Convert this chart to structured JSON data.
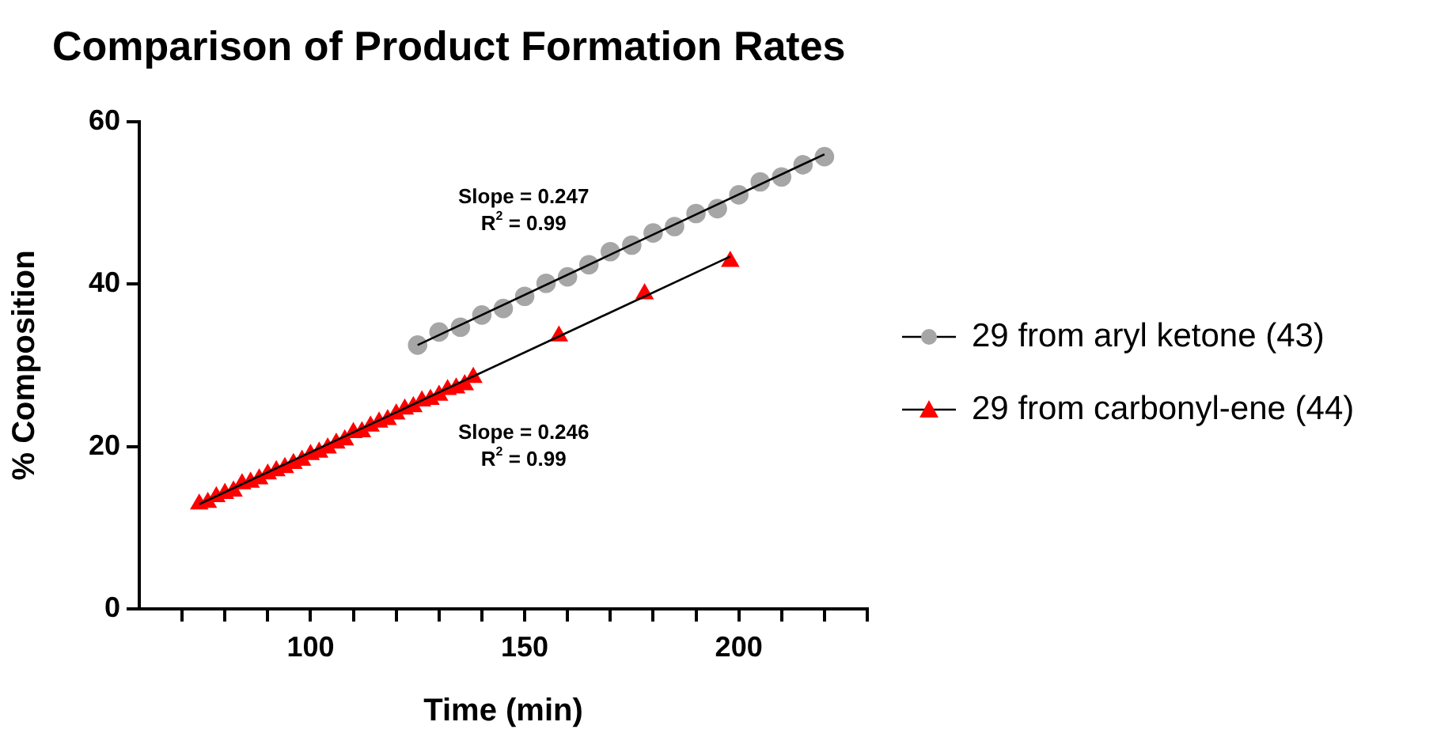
{
  "chart_data": {
    "type": "scatter",
    "title": "Comparison of Product Formation Rates",
    "xlabel": "Time (min)",
    "ylabel": "% Composition",
    "xlim": [
      60,
      230
    ],
    "xticks": [
      {
        "value": 70,
        "label": null
      },
      {
        "value": 80,
        "label": null
      },
      {
        "value": 90,
        "label": null
      },
      100,
      {
        "value": 110,
        "label": null
      },
      {
        "value": 120,
        "label": null
      },
      {
        "value": 130,
        "label": null
      },
      {
        "value": 140,
        "label": null
      },
      150,
      {
        "value": 160,
        "label": null
      },
      {
        "value": 170,
        "label": null
      },
      {
        "value": 180,
        "label": null
      },
      {
        "value": 190,
        "label": null
      },
      200,
      {
        "value": 210,
        "label": null
      },
      {
        "value": 220,
        "label": null
      },
      {
        "value": 230,
        "label": null
      }
    ],
    "ylim": [
      0,
      60
    ],
    "yticks": [
      0,
      20,
      40,
      60
    ],
    "grid": false,
    "legend": "right",
    "series": [
      {
        "name": "29 from aryl ketone (43)",
        "marker": "circle",
        "color": "#a6a6a6",
        "x": [
          125,
          130,
          135,
          140,
          145,
          150,
          155,
          160,
          165,
          170,
          175,
          180,
          185,
          190,
          195,
          200,
          205,
          210,
          215,
          220
        ],
        "values": [
          32.5,
          34.1,
          34.7,
          36.2,
          37.0,
          38.5,
          40.1,
          40.9,
          42.4,
          44.0,
          44.8,
          46.3,
          47.1,
          48.7,
          49.3,
          51.0,
          52.6,
          53.2,
          54.7,
          55.7
        ]
      },
      {
        "name": "29 from carbonyl-ene (44)",
        "marker": "triangle",
        "color": "#ff0000",
        "x": [
          74,
          76,
          78,
          80,
          82,
          84,
          86,
          88,
          90,
          92,
          94,
          96,
          98,
          100,
          102,
          104,
          106,
          108,
          110,
          112,
          114,
          116,
          118,
          120,
          122,
          124,
          126,
          128,
          130,
          132,
          134,
          136,
          138,
          158,
          178,
          198
        ],
        "values": [
          12.9,
          13.1,
          13.8,
          14.2,
          14.5,
          15.4,
          15.6,
          16.0,
          16.6,
          17.0,
          17.4,
          17.9,
          18.3,
          19.0,
          19.3,
          19.8,
          20.4,
          20.8,
          21.7,
          21.8,
          22.5,
          23.0,
          23.3,
          24.0,
          24.6,
          24.9,
          25.6,
          25.8,
          26.3,
          27.0,
          27.2,
          27.6,
          28.5,
          33.6,
          38.8,
          42.8
        ]
      },
      {
        "type": "line",
        "marker": "none",
        "color": "#000000",
        "x": [
          125,
          220
        ],
        "values": [
          32.5,
          56.0
        ]
      },
      {
        "type": "line",
        "marker": "none",
        "color": "#000000",
        "x": [
          74,
          198
        ],
        "values": [
          12.9,
          43.4
        ]
      }
    ],
    "annotations": [
      "Slope = 0.247",
      "R$^{2}$ = 0.99",
      "Slope = 0.246",
      "R$^{2}$ = 0.99"
    ]
  }
}
